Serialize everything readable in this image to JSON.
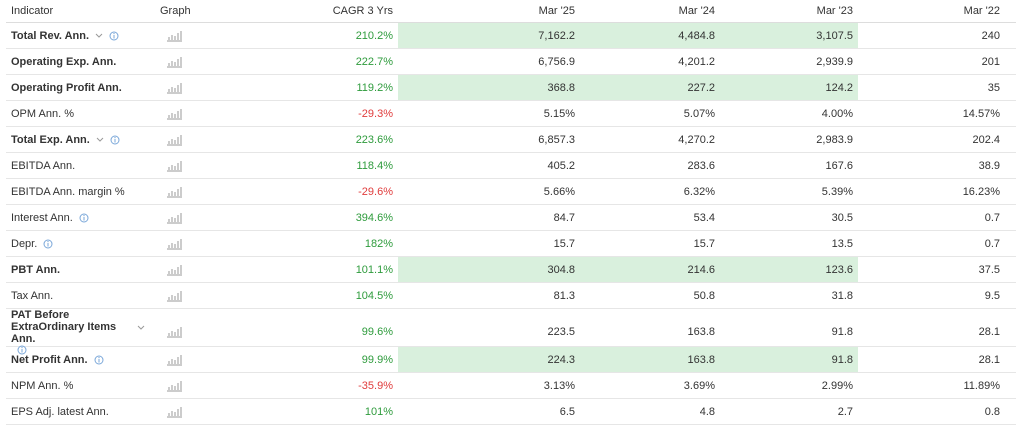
{
  "table": {
    "headers": [
      "Indicator",
      "Graph",
      "CAGR 3 Yrs",
      "Mar '25",
      "Mar '24",
      "Mar '23",
      "Mar '22"
    ],
    "rows": [
      {
        "label": "Total Rev. Ann.",
        "cagr": "210.2%",
        "values": [
          "7,162.2",
          "4,484.8",
          "3,107.5",
          "240"
        ],
        "bold": true,
        "highlight": true,
        "expandable": true,
        "info": true
      },
      {
        "label": "Operating Exp. Ann.",
        "cagr": "222.7%",
        "values": [
          "6,756.9",
          "4,201.2",
          "2,939.9",
          "201"
        ],
        "bold": true,
        "highlight": false,
        "expandable": false,
        "info": false
      },
      {
        "label": "Operating Profit Ann.",
        "cagr": "119.2%",
        "values": [
          "368.8",
          "227.2",
          "124.2",
          "35"
        ],
        "bold": true,
        "highlight": true,
        "expandable": false,
        "info": false
      },
      {
        "label": "OPM Ann. %",
        "cagr": "-29.3%",
        "values": [
          "5.15%",
          "5.07%",
          "4.00%",
          "14.57%"
        ],
        "bold": false,
        "highlight": false,
        "expandable": false,
        "info": false
      },
      {
        "label": "Total Exp. Ann.",
        "cagr": "223.6%",
        "values": [
          "6,857.3",
          "4,270.2",
          "2,983.9",
          "202.4"
        ],
        "bold": true,
        "highlight": false,
        "expandable": true,
        "info": true
      },
      {
        "label": "EBITDA Ann.",
        "cagr": "118.4%",
        "values": [
          "405.2",
          "283.6",
          "167.6",
          "38.9"
        ],
        "bold": false,
        "highlight": false,
        "expandable": false,
        "info": false
      },
      {
        "label": "EBITDA Ann. margin %",
        "cagr": "-29.6%",
        "values": [
          "5.66%",
          "6.32%",
          "5.39%",
          "16.23%"
        ],
        "bold": false,
        "highlight": false,
        "expandable": false,
        "info": false
      },
      {
        "label": "Interest Ann.",
        "cagr": "394.6%",
        "values": [
          "84.7",
          "53.4",
          "30.5",
          "0.7"
        ],
        "bold": false,
        "highlight": false,
        "expandable": false,
        "info": true
      },
      {
        "label": "Depr.",
        "cagr": "182%",
        "values": [
          "15.7",
          "15.7",
          "13.5",
          "0.7"
        ],
        "bold": false,
        "highlight": false,
        "expandable": false,
        "info": true
      },
      {
        "label": "PBT Ann.",
        "cagr": "101.1%",
        "values": [
          "304.8",
          "214.6",
          "123.6",
          "37.5"
        ],
        "bold": true,
        "highlight": true,
        "expandable": false,
        "info": false
      },
      {
        "label": "Tax Ann.",
        "cagr": "104.5%",
        "values": [
          "81.3",
          "50.8",
          "31.8",
          "9.5"
        ],
        "bold": false,
        "highlight": false,
        "expandable": false,
        "info": false
      },
      {
        "label": "PAT Before ExtraOrdinary Items Ann.",
        "cagr": "99.6%",
        "values": [
          "223.5",
          "163.8",
          "91.8",
          "28.1"
        ],
        "bold": true,
        "highlight": false,
        "expandable": true,
        "info": true
      },
      {
        "label": "Net Profit Ann.",
        "cagr": "99.9%",
        "values": [
          "224.3",
          "163.8",
          "91.8",
          "28.1"
        ],
        "bold": true,
        "highlight": true,
        "expandable": false,
        "info": true
      },
      {
        "label": "NPM Ann. %",
        "cagr": "-35.9%",
        "values": [
          "3.13%",
          "3.69%",
          "2.99%",
          "11.89%"
        ],
        "bold": false,
        "highlight": false,
        "expandable": false,
        "info": false
      },
      {
        "label": "EPS Adj. latest Ann.",
        "cagr": "101%",
        "values": [
          "6.5",
          "4.8",
          "2.7",
          "0.8"
        ],
        "bold": false,
        "highlight": false,
        "expandable": false,
        "info": false
      }
    ]
  }
}
